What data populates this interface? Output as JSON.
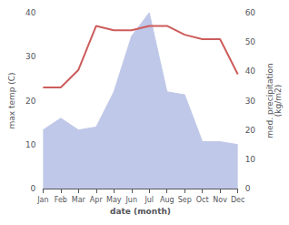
{
  "chart_data": {
    "type": "line",
    "categories": [
      "Jan",
      "Feb",
      "Mar",
      "Apr",
      "May",
      "Jun",
      "Jul",
      "Aug",
      "Sep",
      "Oct",
      "Nov",
      "Dec"
    ],
    "xlabel": "date (month)",
    "ylabel": "max temp (C)",
    "y2label": "med. precipitation\n(kg/m2)",
    "ylim": [
      0,
      40
    ],
    "yticks": [
      0,
      10,
      20,
      30,
      40
    ],
    "y2lim": [
      0,
      60
    ],
    "y2ticks": [
      0,
      10,
      20,
      30,
      40,
      50,
      60
    ],
    "grid": false,
    "series": [
      {
        "type": "line",
        "color": "#cd5c5c",
        "values": [
          23,
          23,
          27,
          37,
          36,
          36,
          37,
          37,
          35,
          34,
          34,
          26
        ]
      },
      {
        "type": "area",
        "color": "#bfc8e8",
        "axis": "y2",
        "values": [
          20,
          24,
          20,
          21,
          33,
          52,
          60,
          33,
          32,
          16,
          16,
          15
        ]
      }
    ]
  }
}
